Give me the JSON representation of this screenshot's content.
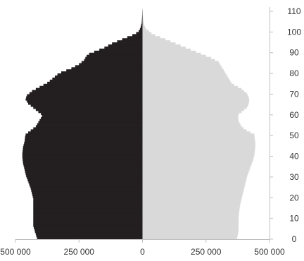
{
  "chart_data": {
    "type": "bar",
    "orientation": "horizontal-pyramid",
    "title": "",
    "xlabel": "",
    "ylabel": "",
    "x_ticks": [
      "500 000",
      "250 000",
      "0",
      "250 000",
      "500 000"
    ],
    "x_tick_values": [
      -500000,
      -250000,
      0,
      250000,
      500000
    ],
    "xlim": [
      -500000,
      500000
    ],
    "y_ticks": [
      "0",
      "10",
      "20",
      "30",
      "40",
      "50",
      "60",
      "70",
      "80",
      "90",
      "100",
      "110"
    ],
    "y_tick_values": [
      0,
      10,
      20,
      30,
      40,
      50,
      60,
      70,
      80,
      90,
      100,
      110
    ],
    "ylim": [
      0,
      110
    ],
    "grid": false,
    "legend": "none",
    "colors": {
      "left": "#231f20",
      "right": "#d9d9d9",
      "axis": "#bfbfbf"
    },
    "ages": [
      0,
      1,
      2,
      3,
      4,
      5,
      6,
      7,
      8,
      9,
      10,
      11,
      12,
      13,
      14,
      15,
      16,
      17,
      18,
      19,
      20,
      21,
      22,
      23,
      24,
      25,
      26,
      27,
      28,
      29,
      30,
      31,
      32,
      33,
      34,
      35,
      36,
      37,
      38,
      39,
      40,
      41,
      42,
      43,
      44,
      45,
      46,
      47,
      48,
      49,
      50,
      51,
      52,
      53,
      54,
      55,
      56,
      57,
      58,
      59,
      60,
      61,
      62,
      63,
      64,
      65,
      66,
      67,
      68,
      69,
      70,
      71,
      72,
      73,
      74,
      75,
      76,
      77,
      78,
      79,
      80,
      81,
      82,
      83,
      84,
      85,
      86,
      87,
      88,
      89,
      90,
      91,
      92,
      93,
      94,
      95,
      96,
      97,
      98,
      99,
      100,
      101,
      102,
      103,
      104,
      105,
      106,
      107,
      108,
      109,
      110
    ],
    "series": [
      {
        "side": "left",
        "values": [
          415000,
          418000,
          420000,
          423000,
          425000,
          428000,
          430000,
          430000,
          430000,
          430000,
          430000,
          430000,
          430000,
          430000,
          430000,
          430000,
          430000,
          430000,
          430000,
          430000,
          432000,
          434000,
          436000,
          438000,
          440000,
          443000,
          446000,
          449000,
          452000,
          455000,
          458000,
          460000,
          462000,
          464000,
          466000,
          468000,
          470000,
          471000,
          472000,
          473000,
          473000,
          473000,
          472000,
          471000,
          470000,
          468000,
          466000,
          464000,
          463000,
          462000,
          460000,
          450000,
          440000,
          430000,
          420000,
          415000,
          410000,
          405000,
          400000,
          395000,
          400000,
          410000,
          420000,
          430000,
          440000,
          450000,
          455000,
          460000,
          458000,
          455000,
          445000,
          435000,
          420000,
          405000,
          390000,
          375000,
          365000,
          355000,
          345000,
          335000,
          320000,
          300000,
          280000,
          265000,
          250000,
          240000,
          230000,
          225000,
          220000,
          210000,
          190000,
          170000,
          150000,
          135000,
          120000,
          100000,
          80000,
          60000,
          40000,
          25000,
          15000,
          10000,
          7000,
          5000,
          3000,
          2500,
          2000,
          1500,
          1000,
          800,
          500
        ]
      },
      {
        "side": "right",
        "values": [
          372000,
          374000,
          376000,
          377000,
          378000,
          378000,
          378000,
          378000,
          378000,
          378000,
          378000,
          379000,
          380000,
          381000,
          382000,
          383000,
          384000,
          386000,
          388000,
          390000,
          392000,
          394000,
          396000,
          398000,
          400000,
          402000,
          404000,
          406000,
          408000,
          410000,
          412000,
          415000,
          418000,
          421000,
          424000,
          427000,
          430000,
          433000,
          436000,
          438000,
          440000,
          441000,
          442000,
          443000,
          444000,
          444000,
          444000,
          443000,
          442000,
          441000,
          440000,
          425000,
          410000,
          398000,
          390000,
          385000,
          380000,
          378000,
          377000,
          376000,
          380000,
          390000,
          400000,
          410000,
          415000,
          418000,
          420000,
          420000,
          418000,
          414000,
          410000,
          400000,
          390000,
          375000,
          360000,
          350000,
          345000,
          340000,
          335000,
          330000,
          325000,
          320000,
          315000,
          310000,
          305000,
          300000,
          285000,
          270000,
          250000,
          230000,
          210000,
          190000,
          170000,
          150000,
          130000,
          110000,
          90000,
          70000,
          50000,
          35000,
          25000,
          15000,
          10000,
          7000,
          5000,
          3500,
          2500,
          1800,
          1200,
          800,
          500
        ]
      }
    ]
  }
}
